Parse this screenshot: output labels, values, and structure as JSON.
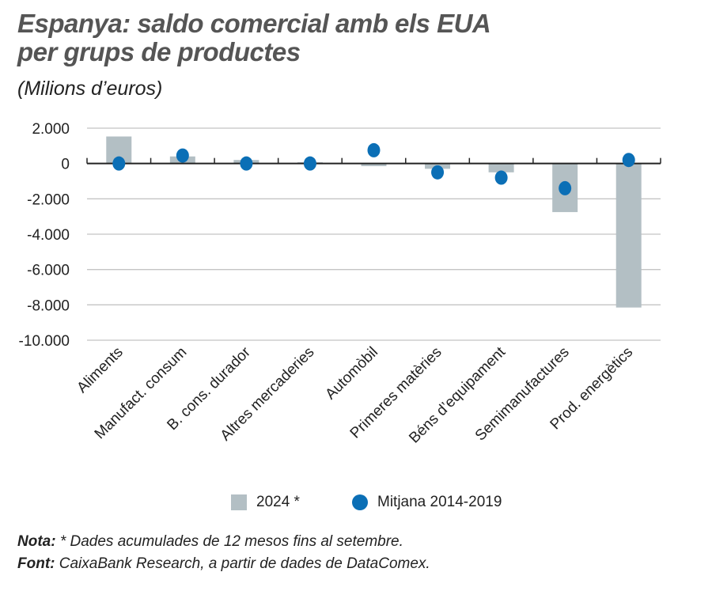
{
  "title_line1": "Espanya: saldo comercial amb els EUA",
  "title_line2": "per grups de productes",
  "unit": "(Milions d’euros)",
  "chart_data": {
    "type": "bar",
    "categories": [
      "Aliments",
      "Manufact. consum",
      "B. cons. durador",
      "Altres mercaderies",
      "Automòbil",
      "Primeres matèries",
      "Béns d’equipament",
      "Semimanufactures",
      "Prod. energètics"
    ],
    "series": [
      {
        "name": "2024 *",
        "type": "bar",
        "color": "#b3bfc4",
        "values": [
          1530,
          400,
          200,
          70,
          -150,
          -300,
          -500,
          -2750,
          -8150
        ]
      },
      {
        "name": "Mitjana 2014-2019",
        "type": "scatter",
        "color": "#0b6fb6",
        "values": [
          0,
          450,
          0,
          0,
          750,
          -500,
          -800,
          -1400,
          200
        ]
      }
    ],
    "yticks": [
      2000,
      0,
      -2000,
      -4000,
      -6000,
      -8000,
      -10000
    ],
    "ytick_labels": [
      "2.000",
      "0",
      "-2.000",
      "-4.000",
      "-6.000",
      "-8.000",
      "-10.000"
    ],
    "ylim": [
      -10000,
      2000
    ],
    "grid": true,
    "legend_placement": "bottom"
  },
  "legend": {
    "bar_label": "2024 *",
    "dot_label": "Mitjana 2014-2019"
  },
  "note": {
    "label": "Nota:",
    "text": " * Dades acumulades de 12 mesos fins al setembre."
  },
  "source": {
    "label": "Font:",
    "text": " CaixaBank Research, a partir de dades de DataComex."
  }
}
